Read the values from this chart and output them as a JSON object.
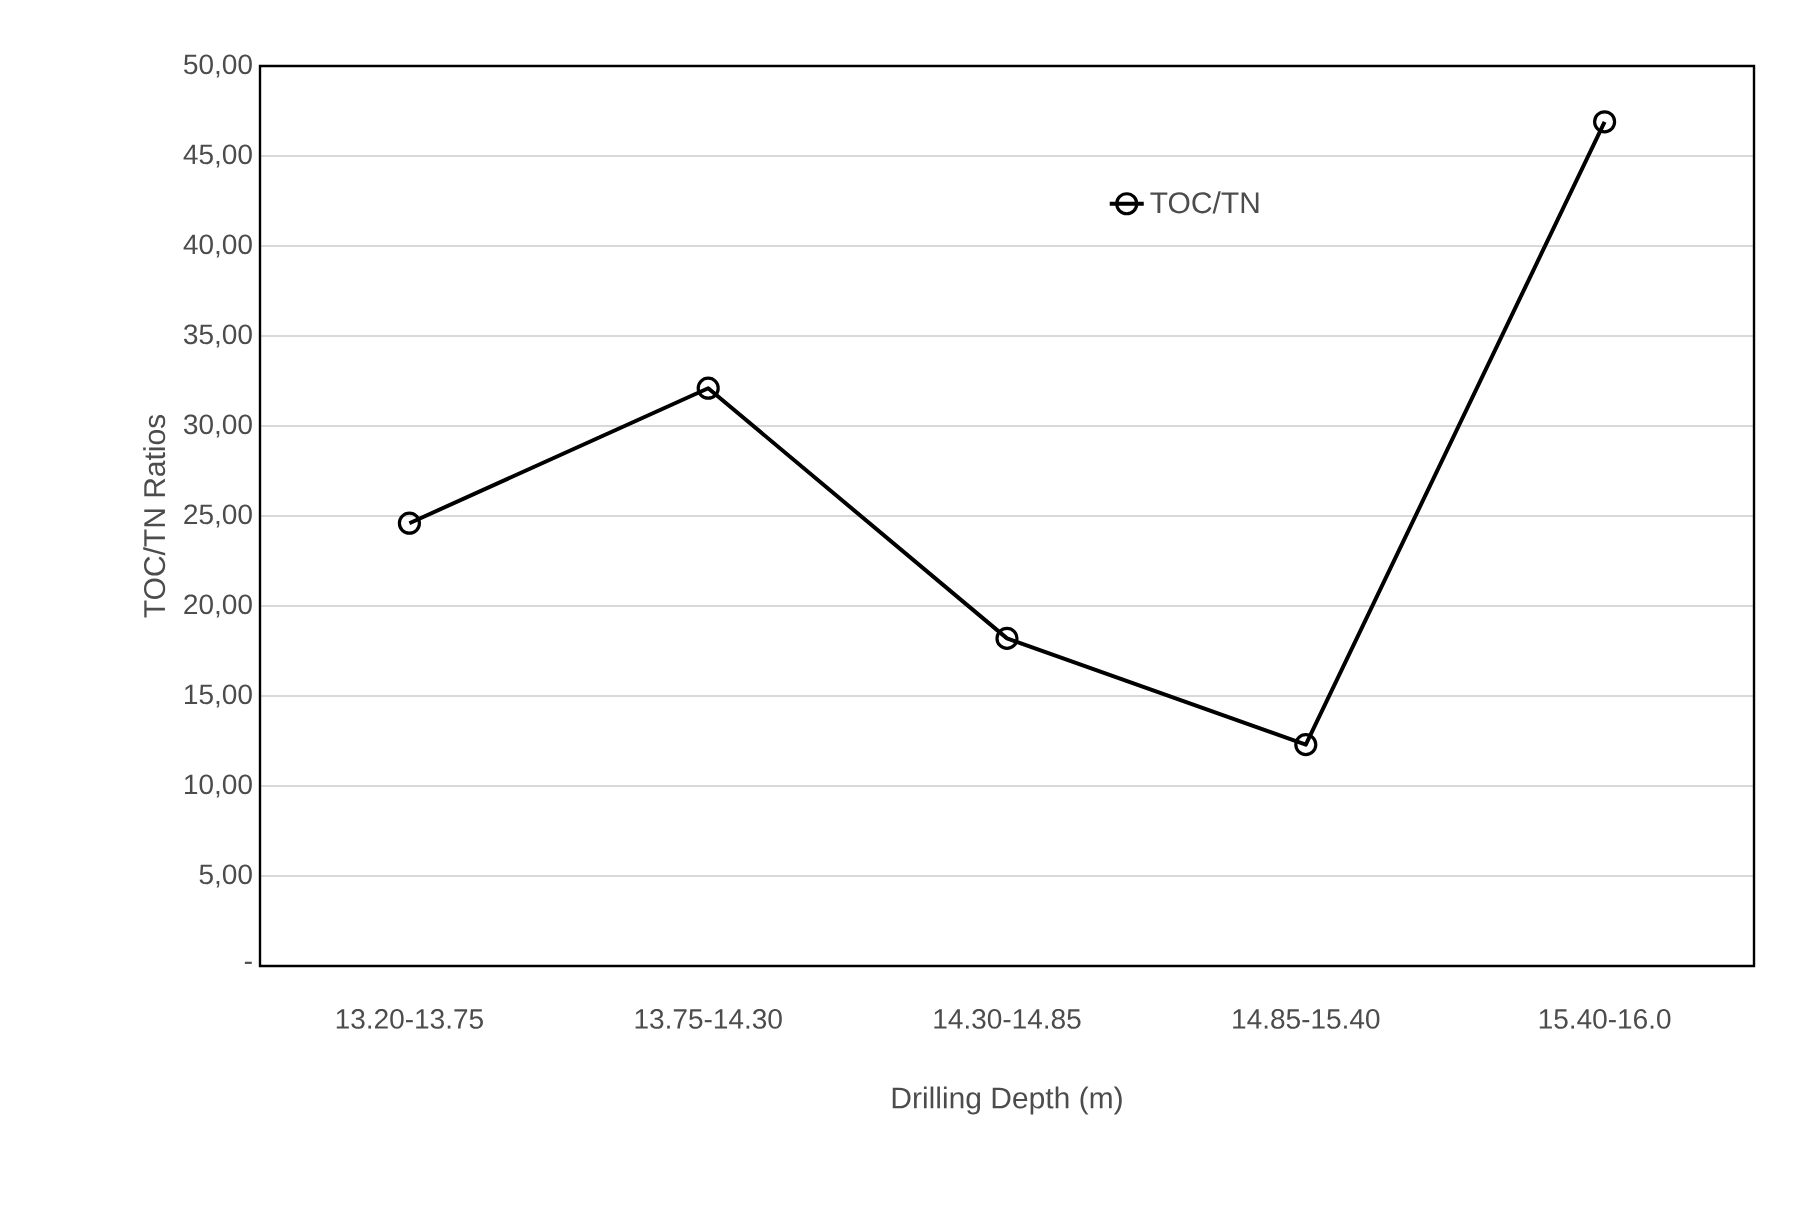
{
  "chart_data": {
    "type": "line",
    "xlabel": "Drilling Depth (m)",
    "ylabel": "TOC/TN Ratios",
    "categories": [
      "13.20-13.75",
      "13.75-14.30",
      "14.30-14.85",
      "14.85-15.40",
      "15.40-16.0"
    ],
    "series": [
      {
        "name": "TOC/TN",
        "color": "#000000",
        "values": [
          24.6,
          32.1,
          18.2,
          12.3,
          46.9
        ]
      }
    ],
    "ylim": [
      0,
      50
    ],
    "yticks": [
      {
        "value": 0,
        "label": "-"
      },
      {
        "value": 5,
        "label": "5,00"
      },
      {
        "value": 10,
        "label": "10,00"
      },
      {
        "value": 15,
        "label": "15,00"
      },
      {
        "value": 20,
        "label": "20,00"
      },
      {
        "value": 25,
        "label": "25,00"
      },
      {
        "value": 30,
        "label": "30,00"
      },
      {
        "value": 35,
        "label": "35,00"
      },
      {
        "value": 40,
        "label": "40,00"
      },
      {
        "value": 45,
        "label": "45,00"
      },
      {
        "value": 50,
        "label": "50,00"
      }
    ],
    "grid": "y",
    "legend": "top",
    "marker": "circle",
    "line_style": "solid"
  }
}
